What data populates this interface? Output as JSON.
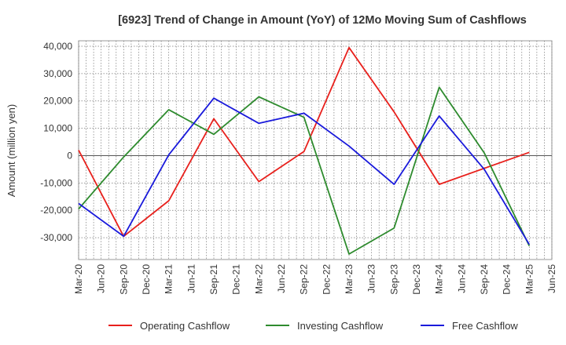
{
  "chart_data": {
    "type": "line",
    "title": "[6923]  Trend of Change in Amount (YoY) of 12Mo Moving Sum of Cashflows",
    "xlabel": "",
    "ylabel": "Amount (million yen)",
    "ylim": [
      -38000,
      42000
    ],
    "yticks": [
      40000,
      30000,
      20000,
      10000,
      0,
      -10000,
      -20000,
      -30000
    ],
    "ytick_labels": [
      "40,000",
      "30,000",
      "20,000",
      "10,000",
      "0",
      "-10,000",
      "-20,000",
      "-30,000"
    ],
    "categories": [
      "Mar-20",
      "Jun-20",
      "Sep-20",
      "Dec-20",
      "Mar-21",
      "Jun-21",
      "Sep-21",
      "Dec-21",
      "Mar-22",
      "Jun-22",
      "Sep-22",
      "Dec-22",
      "Mar-23",
      "Jun-23",
      "Sep-23",
      "Dec-23",
      "Mar-24",
      "Jun-24",
      "Sep-24",
      "Dec-24",
      "Mar-25",
      "Jun-25"
    ],
    "grid": true,
    "legend_position": "bottom",
    "series": [
      {
        "name": "Operating Cashflow",
        "color": "#e8201c",
        "points": [
          {
            "x": "Mar-20",
            "y": 2000
          },
          {
            "x": "Sep-20",
            "y": -29500
          },
          {
            "x": "Mar-21",
            "y": -16500
          },
          {
            "x": "Sep-21",
            "y": 13500
          },
          {
            "x": "Mar-22",
            "y": -9500
          },
          {
            "x": "Sep-22",
            "y": 1500
          },
          {
            "x": "Mar-23",
            "y": 39500
          },
          {
            "x": "Sep-23",
            "y": 16000
          },
          {
            "x": "Mar-24",
            "y": -10500
          },
          {
            "x": "Mar-25",
            "y": 1200
          }
        ]
      },
      {
        "name": "Investing Cashflow",
        "color": "#2e8b2e",
        "points": [
          {
            "x": "Mar-20",
            "y": -19500
          },
          {
            "x": "Sep-20",
            "y": -500
          },
          {
            "x": "Mar-21",
            "y": 16800
          },
          {
            "x": "Sep-21",
            "y": 7800
          },
          {
            "x": "Mar-22",
            "y": 21500
          },
          {
            "x": "Sep-22",
            "y": 14000
          },
          {
            "x": "Mar-23",
            "y": -36000
          },
          {
            "x": "Sep-23",
            "y": -26500
          },
          {
            "x": "Mar-24",
            "y": 25000
          },
          {
            "x": "Sep-24",
            "y": 1000
          },
          {
            "x": "Mar-25",
            "y": -33000
          }
        ]
      },
      {
        "name": "Free Cashflow",
        "color": "#1a1adb",
        "points": [
          {
            "x": "Mar-20",
            "y": -17500
          },
          {
            "x": "Sep-20",
            "y": -29500
          },
          {
            "x": "Mar-21",
            "y": 300
          },
          {
            "x": "Sep-21",
            "y": 21000
          },
          {
            "x": "Mar-22",
            "y": 11800
          },
          {
            "x": "Sep-22",
            "y": 15500
          },
          {
            "x": "Mar-23",
            "y": 3500
          },
          {
            "x": "Sep-23",
            "y": -10500
          },
          {
            "x": "Mar-24",
            "y": 14500
          },
          {
            "x": "Sep-24",
            "y": -5000
          },
          {
            "x": "Mar-25",
            "y": -32500
          }
        ]
      }
    ]
  }
}
